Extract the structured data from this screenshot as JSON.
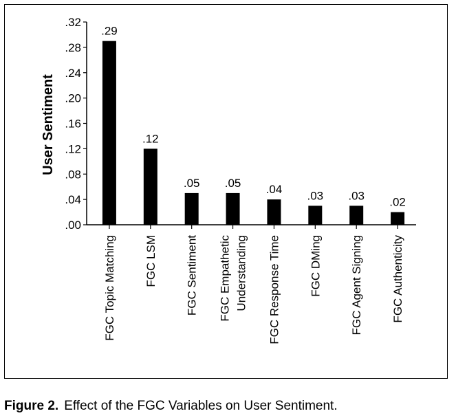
{
  "chart_data": {
    "type": "bar",
    "categories": [
      [
        "FGC Topic Matching"
      ],
      [
        "FGC LSM"
      ],
      [
        "FGC Sentiment"
      ],
      [
        "FGC Empathetic",
        "Understanding"
      ],
      [
        "FGC Response Time"
      ],
      [
        "FGC DMing"
      ],
      [
        "FGC Agent Signing"
      ],
      [
        "FGC Authenticity"
      ]
    ],
    "values": [
      0.29,
      0.12,
      0.05,
      0.05,
      0.04,
      0.03,
      0.03,
      0.02
    ],
    "value_labels": [
      ".29",
      ".12",
      ".05",
      ".05",
      ".04",
      ".03",
      ".03",
      ".02"
    ],
    "ylabel": "User Sentiment",
    "ylim": [
      0,
      0.32
    ],
    "yticks": [
      0,
      0.04,
      0.08,
      0.12,
      0.16,
      0.2,
      0.24,
      0.28,
      0.32
    ],
    "ytick_labels": [
      ".00",
      ".04",
      ".08",
      ".12",
      ".16",
      ".20",
      ".24",
      ".28",
      ".32"
    ],
    "bar_color": "#000000",
    "grid": false
  },
  "caption": {
    "label": "Figure 2.",
    "text": "Effect of the FGC Variables on User Sentiment."
  }
}
